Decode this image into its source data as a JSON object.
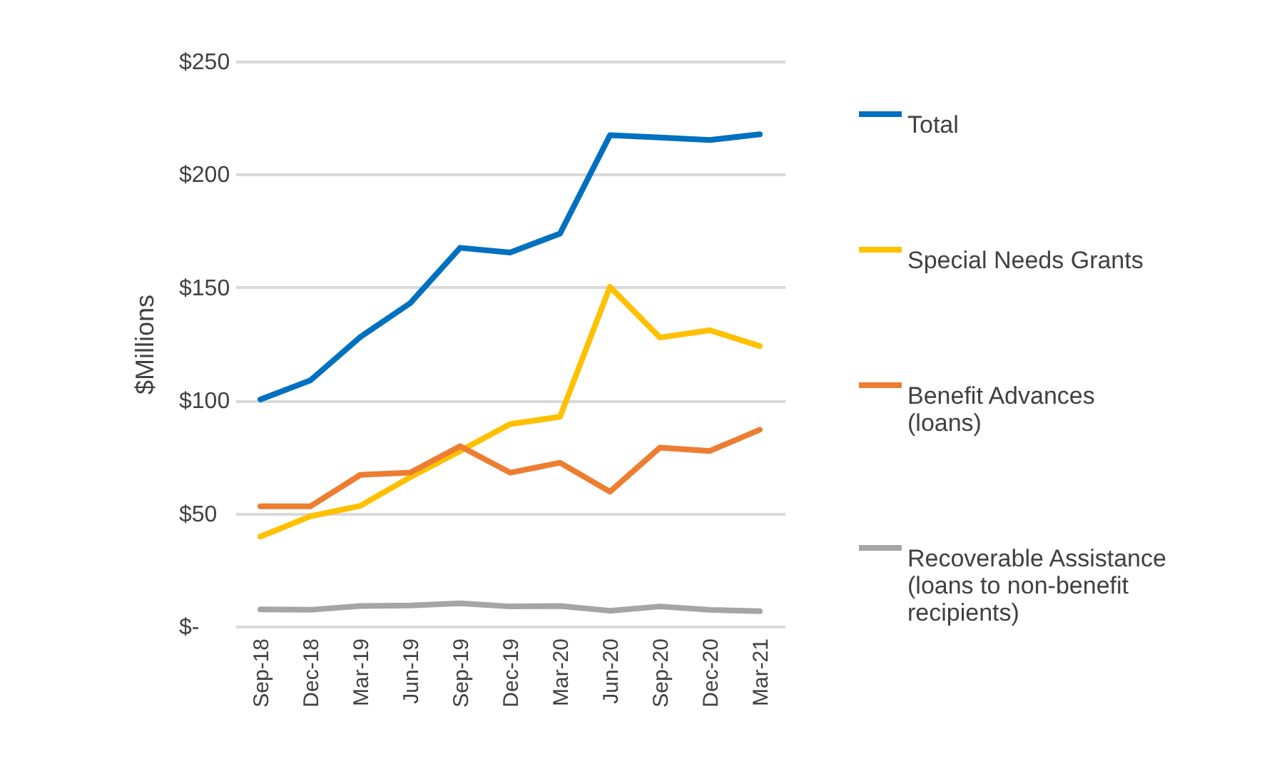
{
  "chart_data": {
    "type": "line",
    "ylabel": "$Millions",
    "categories": [
      "Sep-18",
      "Dec-18",
      "Mar-19",
      "Jun-19",
      "Sep-19",
      "Dec-19",
      "Mar-20",
      "Jun-20",
      "Sep-20",
      "Dec-20",
      "Mar-21"
    ],
    "series": [
      {
        "name": "Total",
        "color": "#0070c0",
        "values": [
          100.4,
          108.8,
          128,
          143,
          167.5,
          165.4,
          173.8,
          217.3,
          216.3,
          215.2,
          217.7
        ]
      },
      {
        "name": "Special Needs Grants",
        "color": "#ffc000",
        "values": [
          39.7,
          48.7,
          53.3,
          66,
          77.6,
          89.5,
          92.7,
          150.2,
          127.8,
          131,
          124
        ]
      },
      {
        "name": "Benefit Advances (loans)",
        "color": "#ed7d31",
        "values": [
          53.1,
          53.1,
          67,
          68,
          79.7,
          68,
          72.4,
          59.6,
          79.1,
          77.6,
          87
        ]
      },
      {
        "name": "Recoverable Assistance (loans to non-benefit recipients)",
        "color": "#a5a5a5",
        "values": [
          7.5,
          7.3,
          9,
          9.2,
          10.2,
          8.8,
          9,
          6.9,
          8.8,
          7.3,
          6.7
        ]
      }
    ],
    "ylim": [
      0,
      250
    ],
    "yticks": [
      {
        "value": 0,
        "label": "$-"
      },
      {
        "value": 50,
        "label": "$50"
      },
      {
        "value": 100,
        "label": "$100"
      },
      {
        "value": 150,
        "label": "$150"
      },
      {
        "value": 200,
        "label": "$200"
      },
      {
        "value": 250,
        "label": "$250"
      }
    ],
    "grid": "y",
    "legend": "right",
    "marker": "none",
    "line_style": "solid"
  }
}
